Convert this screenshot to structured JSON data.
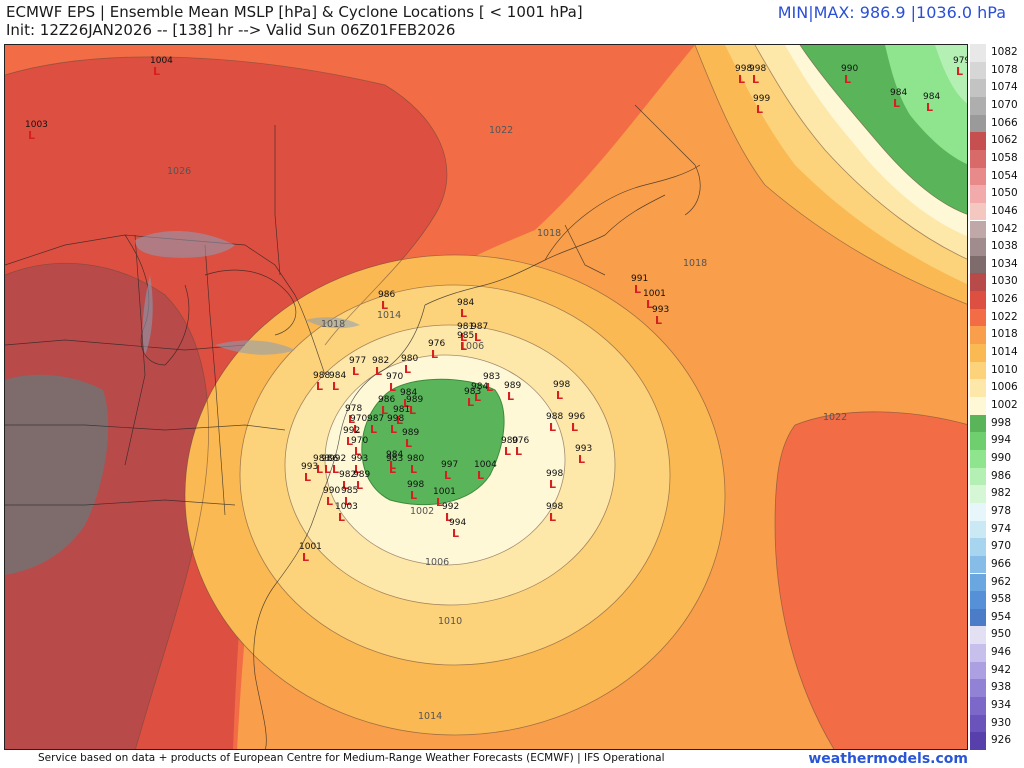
{
  "header": {
    "title_line1": "ECMWF EPS | Ensemble Mean MSLP [hPa] & Cyclone Locations [ < 1001 hPa]",
    "title_line2": "Init: 12Z26JAN2026 -- [138] hr --> Valid Sun 06Z01FEB2026",
    "minmax": "MIN|MAX: 986.9 |1036.0 hPa"
  },
  "footer": {
    "credit": "Service based on data + products of European Centre for Medium-Range Weather Forecasts (ECMWF) | IFS Operational",
    "brand": "weathermodels.com"
  },
  "colorbar": {
    "items": [
      {
        "label": "1082",
        "color": "#e8e8e8"
      },
      {
        "label": "1078",
        "color": "#d6d6d6"
      },
      {
        "label": "1074",
        "color": "#c3c3c3"
      },
      {
        "label": "1070",
        "color": "#aeaeae"
      },
      {
        "label": "1066",
        "color": "#9a9a9a"
      },
      {
        "label": "1062",
        "color": "#c65050"
      },
      {
        "label": "1058",
        "color": "#d86a6a"
      },
      {
        "label": "1054",
        "color": "#e88a8a"
      },
      {
        "label": "1050",
        "color": "#f2aaaa"
      },
      {
        "label": "1046",
        "color": "#f4c8c0"
      },
      {
        "label": "1042",
        "color": "#c0a8a8"
      },
      {
        "label": "1038",
        "color": "#a08c8c"
      },
      {
        "label": "1034",
        "color": "#7e6c6c"
      },
      {
        "label": "1030",
        "color": "#b84a4a"
      },
      {
        "label": "1026",
        "color": "#dd4f40"
      },
      {
        "label": "1022",
        "color": "#f26d45"
      },
      {
        "label": "1018",
        "color": "#f99e4a"
      },
      {
        "label": "1014",
        "color": "#fbb953"
      },
      {
        "label": "1010",
        "color": "#fcd27b"
      },
      {
        "label": "1006",
        "color": "#fde8a9"
      },
      {
        "label": "1002",
        "color": "#fef8d7"
      },
      {
        "label": "998",
        "color": "#5ab55a"
      },
      {
        "label": "994",
        "color": "#6fcf6f"
      },
      {
        "label": "990",
        "color": "#8ee58e"
      },
      {
        "label": "986",
        "color": "#b4f0b4"
      },
      {
        "label": "982",
        "color": "#d6f7d6"
      },
      {
        "label": "978",
        "color": "#e6f6fa"
      },
      {
        "label": "974",
        "color": "#cbe9f4"
      },
      {
        "label": "970",
        "color": "#a7d4ef"
      },
      {
        "label": "966",
        "color": "#86bde8"
      },
      {
        "label": "962",
        "color": "#6aa6e0"
      },
      {
        "label": "958",
        "color": "#5690d6"
      },
      {
        "label": "954",
        "color": "#4a7cc8"
      },
      {
        "label": "950",
        "color": "#e4e0f4"
      },
      {
        "label": "946",
        "color": "#c8c0ec"
      },
      {
        "label": "942",
        "color": "#aca0e2"
      },
      {
        "label": "938",
        "color": "#9282d6"
      },
      {
        "label": "934",
        "color": "#7c68c8"
      },
      {
        "label": "930",
        "color": "#6a54bc"
      },
      {
        "label": "926",
        "color": "#5840ac"
      }
    ]
  },
  "contour_labels": {
    "c1026": "1026",
    "c1022a": "1022",
    "c1018a": "1018",
    "c1018b": "1018",
    "c1018c": "1018",
    "c1014a": "1014",
    "c1006a": "1006",
    "c1002": "1002",
    "c1006b": "1006",
    "c1010": "1010",
    "c1022b": "1022",
    "c1014b": "1014"
  },
  "lows": [
    {
      "v": "1004"
    },
    {
      "v": "1003"
    },
    {
      "v": "998"
    },
    {
      "v": "998"
    },
    {
      "v": "999"
    },
    {
      "v": "990"
    },
    {
      "v": "984"
    },
    {
      "v": "984"
    },
    {
      "v": "979"
    },
    {
      "v": "991"
    },
    {
      "v": "1001"
    },
    {
      "v": "993"
    },
    {
      "v": "986"
    },
    {
      "v": "984"
    },
    {
      "v": "981"
    },
    {
      "v": "987"
    },
    {
      "v": "985"
    },
    {
      "v": "976"
    },
    {
      "v": "977"
    },
    {
      "v": "982"
    },
    {
      "v": "980"
    },
    {
      "v": "970"
    },
    {
      "v": "984"
    },
    {
      "v": "983"
    },
    {
      "v": "984"
    },
    {
      "v": "989"
    },
    {
      "v": "998"
    },
    {
      "v": "983"
    },
    {
      "v": "986"
    },
    {
      "v": "989"
    },
    {
      "v": "981"
    },
    {
      "v": "978"
    },
    {
      "v": "970"
    },
    {
      "v": "987"
    },
    {
      "v": "998"
    },
    {
      "v": "989"
    },
    {
      "v": "988"
    },
    {
      "v": "996"
    },
    {
      "v": "993"
    },
    {
      "v": "980"
    },
    {
      "v": "976"
    },
    {
      "v": "992"
    },
    {
      "v": "970"
    },
    {
      "v": "993"
    },
    {
      "v": "984"
    },
    {
      "v": "983"
    },
    {
      "v": "998"
    },
    {
      "v": "980"
    },
    {
      "v": "997"
    },
    {
      "v": "1004"
    },
    {
      "v": "998"
    },
    {
      "v": "1001"
    },
    {
      "v": "992"
    },
    {
      "v": "994"
    },
    {
      "v": "998"
    },
    {
      "v": "983"
    },
    {
      "v": "986"
    },
    {
      "v": "992"
    },
    {
      "v": "993"
    },
    {
      "v": "982"
    },
    {
      "v": "989"
    },
    {
      "v": "990"
    },
    {
      "v": "985"
    },
    {
      "v": "1003"
    },
    {
      "v": "1001"
    },
    {
      "v": "988"
    },
    {
      "v": "984"
    }
  ]
}
